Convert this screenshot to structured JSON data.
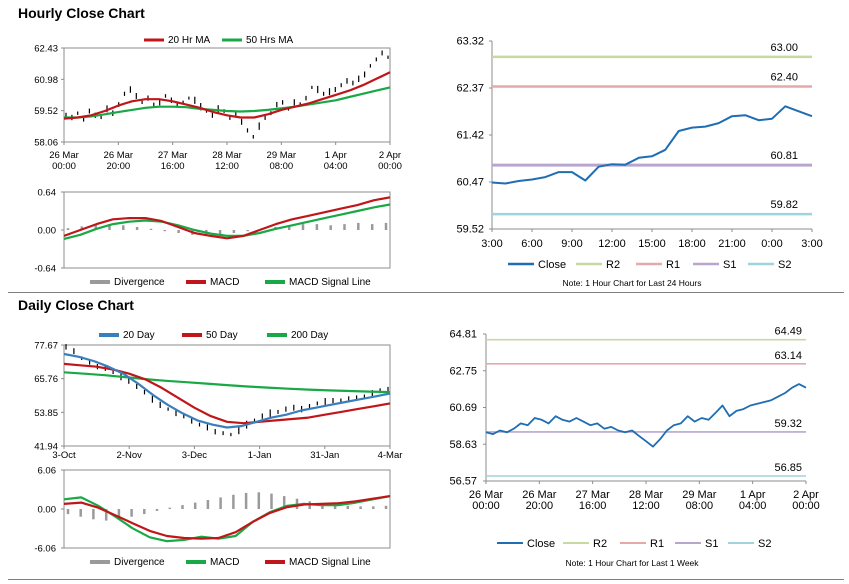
{
  "titles": {
    "hourly": "Hourly Close Chart",
    "daily": "Daily Close Chart"
  },
  "colors": {
    "red": "#c0161a",
    "green": "#19a846",
    "blue": "#3a7fbd",
    "black": "#000000",
    "grey": "#9a9a9a",
    "r2": "#c6d9a0",
    "r1": "#e6a9aa",
    "s1": "#b9a6cf",
    "s2": "#9fd3dd",
    "close": "#1f6db3"
  },
  "chart_data": [
    {
      "id": "hourly_price",
      "type": "line",
      "title": "Hourly price with moving averages",
      "legend": [
        "20 Hr MA",
        "50 Hrs MA"
      ],
      "ylim": [
        58.06,
        62.43
      ],
      "yticks": [
        "62.43",
        "60.98",
        "59.52",
        "58.06"
      ],
      "xticks": [
        [
          "26 Mar",
          "00:00"
        ],
        [
          "26 Mar",
          "20:00"
        ],
        [
          "27 Mar",
          "16:00"
        ],
        [
          "28 Mar",
          "12:00"
        ],
        [
          "29 Mar",
          "08:00"
        ],
        [
          "1 Apr",
          "04:00"
        ],
        [
          "2 Apr",
          "00:00"
        ]
      ],
      "n": 140,
      "series": [
        {
          "name": "Close",
          "style": "bars",
          "values": [
            59.3,
            59.2,
            59.4,
            59.1,
            59.5,
            59.3,
            59.2,
            59.6,
            59.4,
            59.8,
            60.3,
            60.5,
            60.2,
            59.9,
            60.1,
            59.8,
            59.9,
            60.2,
            60.0,
            59.8,
            59.9,
            60.1,
            60.0,
            59.7,
            59.5,
            59.3,
            59.6,
            59.5,
            59.2,
            59.4,
            59.0,
            58.6,
            58.3,
            58.8,
            59.2,
            59.4,
            59.8,
            59.9,
            59.6,
            59.9,
            59.8,
            60.1,
            60.6,
            60.5,
            60.3,
            60.4,
            60.5,
            60.7,
            60.9,
            60.8,
            61.0,
            61.2,
            61.6,
            61.9,
            62.2,
            62.0
          ]
        },
        {
          "name": "20 Hr MA",
          "values": [
            59.15,
            59.2,
            59.3,
            59.5,
            59.75,
            59.95,
            60.05,
            60.05,
            59.95,
            59.8,
            59.65,
            59.45,
            59.3,
            59.2,
            59.2,
            59.35,
            59.55,
            59.7,
            59.85,
            60.05,
            60.25,
            60.45,
            60.7,
            61.0,
            61.3
          ]
        },
        {
          "name": "50 Hrs MA",
          "values": [
            59.2,
            59.2,
            59.25,
            59.35,
            59.45,
            59.55,
            59.65,
            59.7,
            59.7,
            59.68,
            59.6,
            59.55,
            59.5,
            59.48,
            59.5,
            59.55,
            59.62,
            59.7,
            59.8,
            59.9,
            60.0,
            60.15,
            60.3,
            60.45,
            60.6
          ]
        }
      ]
    },
    {
      "id": "hourly_macd",
      "type": "line",
      "legend": [
        "Divergence",
        "MACD",
        "MACD Signal Line"
      ],
      "ylim": [
        -0.64,
        0.64
      ],
      "yticks": [
        "0.64",
        "0.00",
        "-0.64"
      ],
      "series": [
        {
          "name": "Divergence",
          "style": "histogram",
          "values": [
            0.03,
            0.06,
            0.09,
            0.1,
            0.08,
            0.05,
            0.02,
            -0.02,
            -0.05,
            -0.08,
            -0.1,
            -0.08,
            -0.05,
            -0.02,
            0.02,
            0.05,
            0.08,
            0.1,
            0.1,
            0.08,
            0.1,
            0.12,
            0.1,
            0.12
          ]
        },
        {
          "name": "MACD",
          "values": [
            -0.1,
            0.0,
            0.1,
            0.18,
            0.2,
            0.2,
            0.15,
            0.05,
            -0.05,
            -0.1,
            -0.14,
            -0.1,
            0.0,
            0.1,
            0.18,
            0.24,
            0.3,
            0.36,
            0.42,
            0.5,
            0.55
          ]
        },
        {
          "name": "MACD Signal Line",
          "values": [
            -0.15,
            -0.08,
            0.02,
            0.1,
            0.14,
            0.16,
            0.14,
            0.08,
            0.0,
            -0.06,
            -0.1,
            -0.1,
            -0.05,
            0.02,
            0.08,
            0.14,
            0.2,
            0.26,
            0.32,
            0.38,
            0.43
          ]
        }
      ]
    },
    {
      "id": "hourly_24h",
      "type": "line",
      "note": "Note: 1 Hour Chart for Last 24 Hours",
      "ylim": [
        59.52,
        63.32
      ],
      "yticks": [
        "63.32",
        "62.37",
        "61.42",
        "60.47",
        "59.52"
      ],
      "xticks": [
        "3:00",
        "6:00",
        "9:00",
        "12:00",
        "15:00",
        "18:00",
        "21:00",
        "0:00",
        "3:00"
      ],
      "levels": [
        {
          "name": "R2",
          "value": 63.0,
          "label": "63.00"
        },
        {
          "name": "R1",
          "value": 62.4,
          "label": "62.40"
        },
        {
          "name": "S1",
          "value": 60.81,
          "label": "60.81"
        },
        {
          "name": "S2",
          "value": 59.82,
          "label": "59.82"
        }
      ],
      "series": [
        {
          "name": "Close",
          "values": [
            60.46,
            60.44,
            60.49,
            60.52,
            60.57,
            60.67,
            60.67,
            60.5,
            60.78,
            60.83,
            60.82,
            60.96,
            60.99,
            61.12,
            61.5,
            61.57,
            61.59,
            61.66,
            61.8,
            61.82,
            61.72,
            61.75,
            62.0,
            61.9,
            61.8
          ]
        }
      ],
      "legend": [
        "Close",
        "R2",
        "R1",
        "S1",
        "S2"
      ]
    },
    {
      "id": "daily_price",
      "type": "line",
      "legend": [
        "20 Day",
        "50 Day",
        "200 Day"
      ],
      "ylim": [
        41.94,
        77.67
      ],
      "yticks": [
        "77.67",
        "65.76",
        "53.85",
        "41.94"
      ],
      "xticks": [
        "3-Oct",
        "2-Nov",
        "3-Dec",
        "1-Jan",
        "31-Jan",
        "4-Mar"
      ],
      "series": [
        {
          "name": "Close",
          "style": "bars",
          "values": [
            77.0,
            75.5,
            73.0,
            71.5,
            70.0,
            69.5,
            68.0,
            66.5,
            65.0,
            63.0,
            61.0,
            58.5,
            56.5,
            55.0,
            53.5,
            52.5,
            51.0,
            49.5,
            48.5,
            47.0,
            46.5,
            46.0,
            47.5,
            49.5,
            51.0,
            52.5,
            53.5,
            54.0,
            55.0,
            55.5,
            55.0,
            56.0,
            57.0,
            57.5,
            58.0,
            58.0,
            58.5,
            59.0,
            59.5,
            60.5,
            61.5,
            62.0
          ]
        },
        {
          "name": "20 Day",
          "values": [
            74.5,
            73.5,
            72.0,
            70.0,
            67.5,
            64.0,
            60.0,
            56.5,
            53.5,
            51.0,
            49.5,
            48.5,
            49.0,
            50.5,
            52.0,
            53.0,
            54.5,
            55.5,
            56.5,
            57.5,
            58.5,
            59.5,
            60.5
          ]
        },
        {
          "name": "50 Day",
          "values": [
            71.0,
            70.5,
            70.0,
            69.0,
            67.5,
            65.5,
            62.5,
            59.0,
            55.5,
            52.5,
            50.5,
            50.0,
            50.5,
            51.0,
            51.5,
            52.0,
            53.0,
            54.0,
            55.0,
            56.0,
            57.0
          ]
        },
        {
          "name": "200 Day",
          "values": [
            68.0,
            67.5,
            67.0,
            66.3,
            65.6,
            65.0,
            64.5,
            64.0,
            63.5,
            63.0,
            62.6,
            62.2,
            61.9,
            61.6,
            61.4,
            61.2,
            61.0
          ]
        }
      ]
    },
    {
      "id": "daily_macd",
      "type": "line",
      "legend": [
        "Divergence",
        "MACD",
        "MACD Signal Line"
      ],
      "ylim": [
        -6.06,
        6.06
      ],
      "yticks": [
        "6.06",
        "0.00",
        "-6.06"
      ],
      "series": [
        {
          "name": "Divergence",
          "style": "histogram",
          "values": [
            -0.8,
            -1.2,
            -1.6,
            -1.8,
            -1.6,
            -1.2,
            -0.8,
            -0.3,
            0.2,
            0.6,
            1.0,
            1.4,
            1.8,
            2.2,
            2.5,
            2.6,
            2.4,
            2.0,
            1.6,
            1.2,
            0.8,
            0.6,
            0.5,
            0.4,
            0.4,
            0.5
          ]
        },
        {
          "name": "MACD",
          "values": [
            1.5,
            1.8,
            0.5,
            -1.2,
            -3.0,
            -4.4,
            -5.0,
            -4.8,
            -4.3,
            -4.6,
            -4.2,
            -2.0,
            -0.5,
            0.5,
            0.8,
            0.6,
            0.6,
            1.0,
            1.5,
            2.0
          ]
        },
        {
          "name": "MACD Signal Line",
          "values": [
            0.8,
            1.0,
            0.2,
            -1.0,
            -2.2,
            -3.4,
            -4.2,
            -4.5,
            -4.6,
            -4.5,
            -3.6,
            -2.0,
            -0.6,
            0.3,
            0.7,
            0.8,
            0.9,
            1.2,
            1.6,
            2.0
          ]
        }
      ]
    },
    {
      "id": "daily_week",
      "type": "line",
      "note": "Note: 1 Hour Chart for Last 1 Week",
      "ylim": [
        56.57,
        64.81
      ],
      "yticks": [
        "64.81",
        "62.75",
        "60.69",
        "58.63",
        "56.57"
      ],
      "xticks": [
        [
          "26 Mar",
          "00:00"
        ],
        [
          "26 Mar",
          "20:00"
        ],
        [
          "27 Mar",
          "16:00"
        ],
        [
          "28 Mar",
          "12:00"
        ],
        [
          "29 Mar",
          "08:00"
        ],
        [
          "1 Apr",
          "04:00"
        ],
        [
          "2 Apr",
          "00:00"
        ]
      ],
      "levels": [
        {
          "name": "R2",
          "value": 64.49,
          "label": "64.49"
        },
        {
          "name": "R1",
          "value": 63.14,
          "label": "63.14"
        },
        {
          "name": "S1",
          "value": 59.32,
          "label": "59.32"
        },
        {
          "name": "S2",
          "value": 56.85,
          "label": "56.85"
        }
      ],
      "series": [
        {
          "name": "Close",
          "values": [
            59.3,
            59.2,
            59.4,
            59.3,
            59.5,
            59.8,
            59.7,
            60.1,
            60.0,
            59.8,
            60.2,
            60.0,
            59.9,
            60.1,
            59.9,
            59.7,
            59.8,
            59.5,
            59.6,
            59.4,
            59.3,
            59.4,
            59.1,
            58.8,
            58.5,
            58.9,
            59.4,
            59.7,
            59.8,
            60.2,
            59.9,
            60.1,
            60.0,
            60.4,
            60.8,
            60.2,
            60.5,
            60.6,
            60.8,
            60.9,
            61.0,
            61.1,
            61.3,
            61.5,
            61.8,
            62.0,
            61.8
          ]
        }
      ],
      "legend": [
        "Close",
        "R2",
        "R1",
        "S1",
        "S2"
      ]
    }
  ]
}
